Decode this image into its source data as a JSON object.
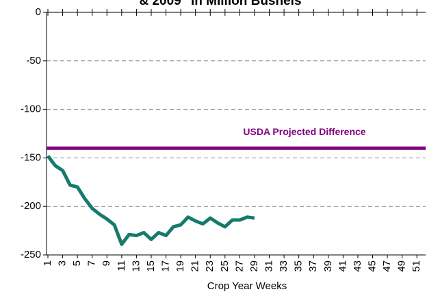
{
  "chart_data": {
    "type": "line",
    "title": "& 2009\" in Million Bushels",
    "x_label": "Crop Year Weeks",
    "x": [
      1,
      2,
      3,
      4,
      5,
      6,
      7,
      8,
      9,
      10,
      11,
      12,
      13,
      14,
      15,
      16,
      17,
      18,
      19,
      20,
      21,
      22,
      23,
      24,
      25,
      26,
      27,
      28,
      29
    ],
    "series": [
      {
        "color": "#177a6c",
        "values": [
          -148,
          -158,
          -163,
          -178,
          -180,
          -192,
          -202,
          -208,
          -213,
          -219,
          -239,
          -229,
          -230,
          -227,
          -234,
          -227,
          -230,
          -221,
          -219,
          -211,
          -215,
          -218,
          -212,
          -217,
          -221,
          -214,
          -214,
          -211,
          -212
        ]
      }
    ],
    "reference_lines": [
      {
        "value": -140,
        "label": "USDA Projected Difference",
        "color": "#800080"
      }
    ],
    "xlim": [
      1,
      52
    ],
    "xticks": [
      1,
      3,
      5,
      7,
      9,
      11,
      13,
      15,
      17,
      19,
      21,
      23,
      25,
      27,
      29,
      31,
      33,
      35,
      37,
      39,
      41,
      43,
      45,
      47,
      49,
      51
    ],
    "ylim": [
      -250,
      0
    ],
    "yticks": [
      0,
      -50,
      -100,
      -150,
      -200,
      -250
    ],
    "grid": true
  }
}
